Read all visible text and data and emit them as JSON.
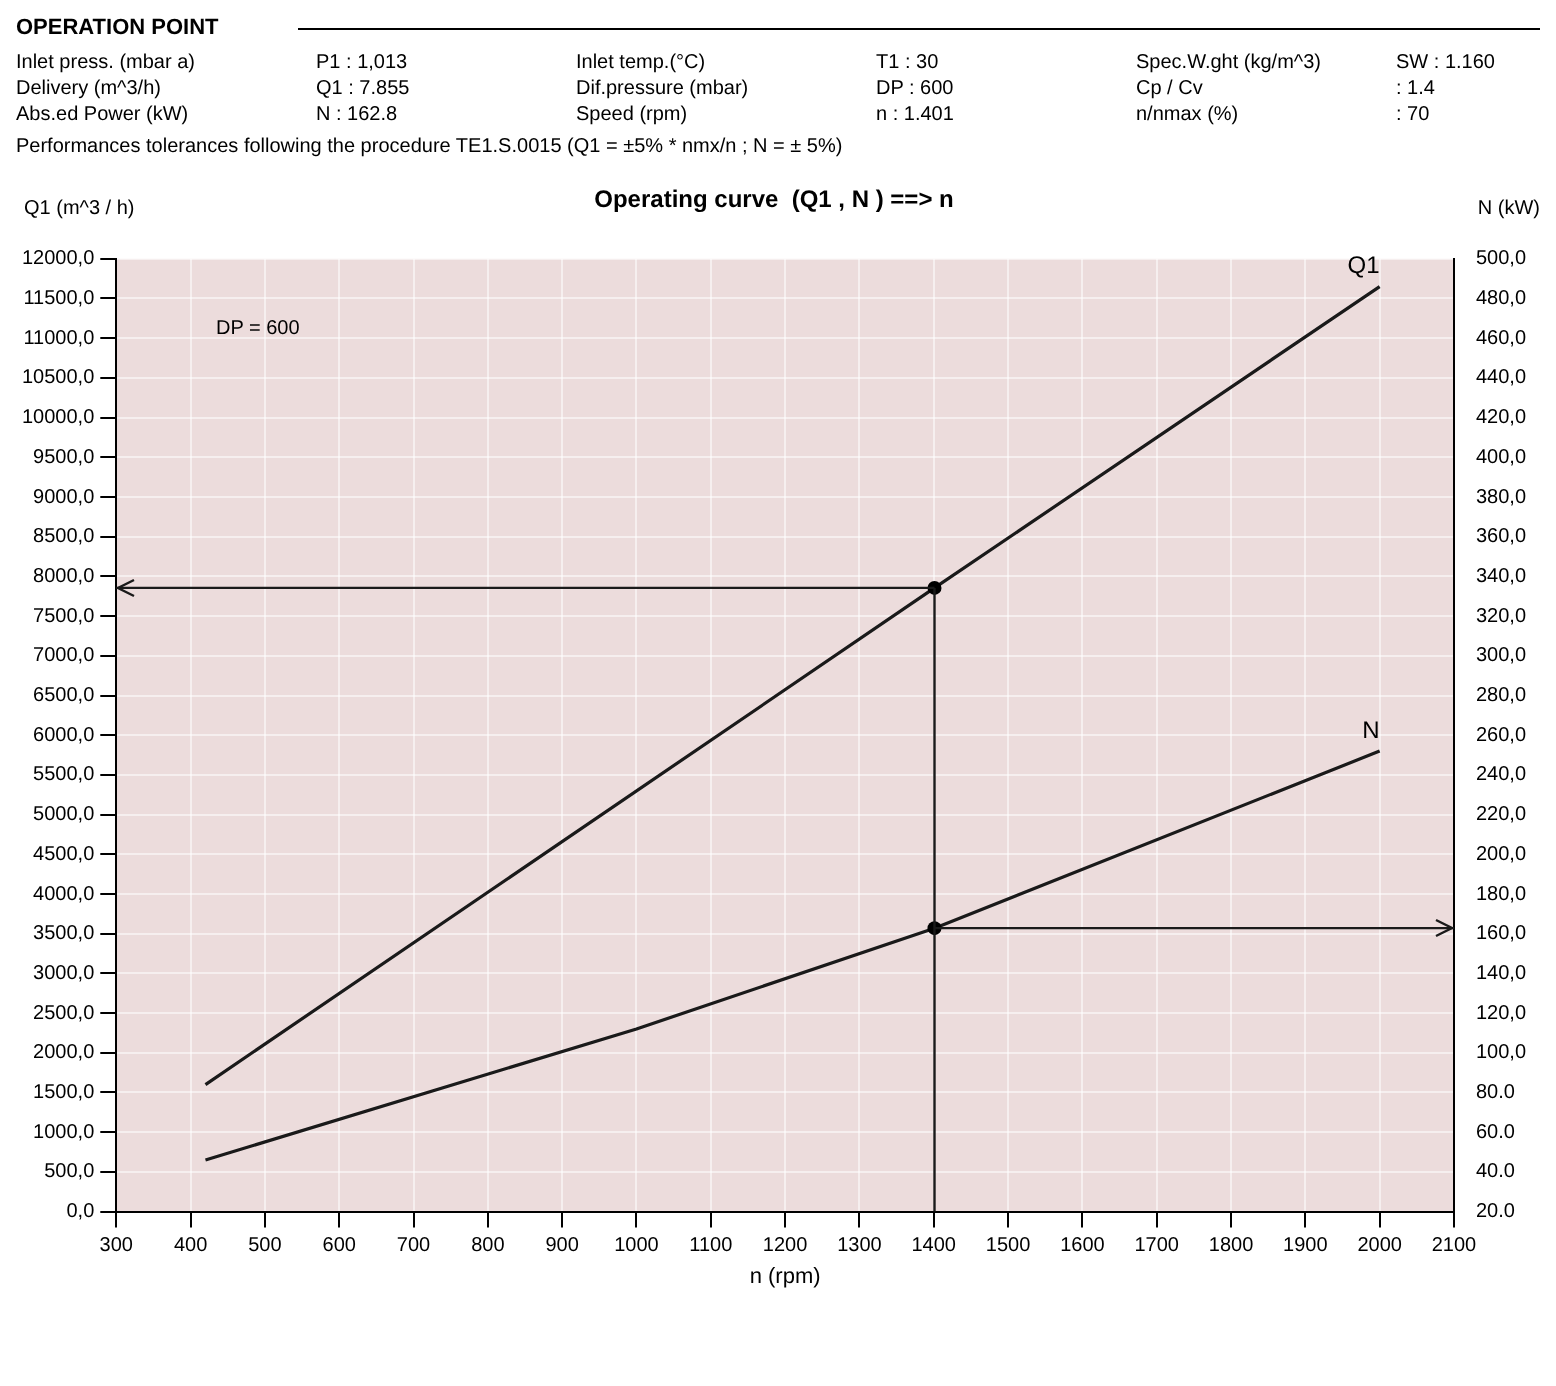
{
  "chart_data": {
    "type": "line",
    "title": "Operating curve  (Q1 , N ) ==> n",
    "xlabel": "n (rpm)",
    "ylabel": "Q1 (m^3 / h)",
    "y2label": "N (kW)",
    "annotations": [
      "OPERATION POINT",
      "Inlet press. (mbar a)",
      "P1  : 1,013",
      "Inlet temp.(°C)",
      "T1  : 30",
      "Spec.W.ght (kg/m^3)",
      "SW : 1.160",
      "Delivery (m^3/h)",
      "Q1  : 7.855",
      "Dif.pressure (mbar)",
      "DP  : 600",
      "Cp / Cv",
      ": 1.4",
      "Abs.ed Power (kW)",
      "N    : 162.8",
      "Speed (rpm)",
      "n    : 1.401",
      "n/nmax (%)",
      ": 70",
      "Performances tolerances following the procedure TE1.S.0015 (Q1 = ±5% * nmx/n ; N = ± 5%)",
      "DP = 600"
    ],
    "series": [
      {
        "name": "Q1",
        "color": "#1a1a1a",
        "x": [
          420,
          1401,
          2000
        ],
        "values": [
          1600,
          7855,
          11650
        ]
      },
      {
        "name": "N",
        "color": "#1a1a1a",
        "axis": "y2",
        "x": [
          420,
          1000,
          1401,
          2000
        ],
        "values": [
          46,
          112,
          162.8,
          252
        ]
      },
      {
        "type": "scatter",
        "color": "#000000",
        "x": [
          1401
        ],
        "values": [
          7855
        ]
      },
      {
        "type": "scatter",
        "color": "#000000",
        "axis": "y2",
        "x": [
          1401
        ],
        "values": [
          162.8
        ]
      }
    ],
    "ref_lines": [
      {
        "axis": "x",
        "value": 1401,
        "color": "#1a1a1a"
      },
      {
        "axis": "y",
        "value": 7855,
        "color": "#1a1a1a"
      },
      {
        "axis": "y2",
        "value": 162.8,
        "color": "#1a1a1a"
      }
    ],
    "xlim": [
      300,
      2100
    ],
    "xticks": [
      300,
      400,
      500,
      600,
      700,
      800,
      900,
      1000,
      1100,
      1200,
      1300,
      1400,
      1500,
      1600,
      1700,
      1800,
      1900,
      2000,
      2100
    ],
    "ylim": [
      0,
      12000
    ],
    "yticks": [
      {
        "value": 0,
        "label": "0,0"
      },
      {
        "value": 500,
        "label": "500,0"
      },
      {
        "value": 1000,
        "label": "1000,0"
      },
      {
        "value": 1500,
        "label": "1500,0"
      },
      {
        "value": 2000,
        "label": "2000,0"
      },
      {
        "value": 2500,
        "label": "2500,0"
      },
      {
        "value": 3000,
        "label": "3000,0"
      },
      {
        "value": 3500,
        "label": "3500,0"
      },
      {
        "value": 4000,
        "label": "4000,0"
      },
      {
        "value": 4500,
        "label": "4500,0"
      },
      {
        "value": 5000,
        "label": "5000,0"
      },
      {
        "value": 5500,
        "label": "5500,0"
      },
      {
        "value": 6000,
        "label": "6000,0"
      },
      {
        "value": 6500,
        "label": "6500,0"
      },
      {
        "value": 7000,
        "label": "7000,0"
      },
      {
        "value": 7500,
        "label": "7500,0"
      },
      {
        "value": 8000,
        "label": "8000,0"
      },
      {
        "value": 8500,
        "label": "8500,0"
      },
      {
        "value": 9000,
        "label": "9000,0"
      },
      {
        "value": 9500,
        "label": "9500,0"
      },
      {
        "value": 10000,
        "label": "10000,0"
      },
      {
        "value": 10500,
        "label": "10500,0"
      },
      {
        "value": 11000,
        "label": "11000,0"
      },
      {
        "value": 11500,
        "label": "11500,0"
      },
      {
        "value": 12000,
        "label": "12000,0"
      }
    ],
    "y2lim": [
      20,
      500
    ],
    "y2ticks": [
      {
        "value": 20,
        "label": "20.0"
      },
      {
        "value": 40,
        "label": "40.0"
      },
      {
        "value": 60,
        "label": "60.0"
      },
      {
        "value": 80,
        "label": "80.0"
      },
      {
        "value": 100,
        "label": "100,0"
      },
      {
        "value": 120,
        "label": "120,0"
      },
      {
        "value": 140,
        "label": "140,0"
      },
      {
        "value": 160,
        "label": "160,0"
      },
      {
        "value": 180,
        "label": "180,0"
      },
      {
        "value": 200,
        "label": "200,0"
      },
      {
        "value": 220,
        "label": "220,0"
      },
      {
        "value": 240,
        "label": "240,0"
      },
      {
        "value": 260,
        "label": "260,0"
      },
      {
        "value": 280,
        "label": "280,0"
      },
      {
        "value": 300,
        "label": "300,0"
      },
      {
        "value": 320,
        "label": "320,0"
      },
      {
        "value": 340,
        "label": "340,0"
      },
      {
        "value": 360,
        "label": "360,0"
      },
      {
        "value": 380,
        "label": "380,0"
      },
      {
        "value": 400,
        "label": "400,0"
      },
      {
        "value": 420,
        "label": "420,0"
      },
      {
        "value": 440,
        "label": "440,0"
      },
      {
        "value": 460,
        "label": "460,0"
      },
      {
        "value": 480,
        "label": "480,0"
      },
      {
        "value": 500,
        "label": "500,0"
      }
    ],
    "grid": true,
    "legend": false
  }
}
